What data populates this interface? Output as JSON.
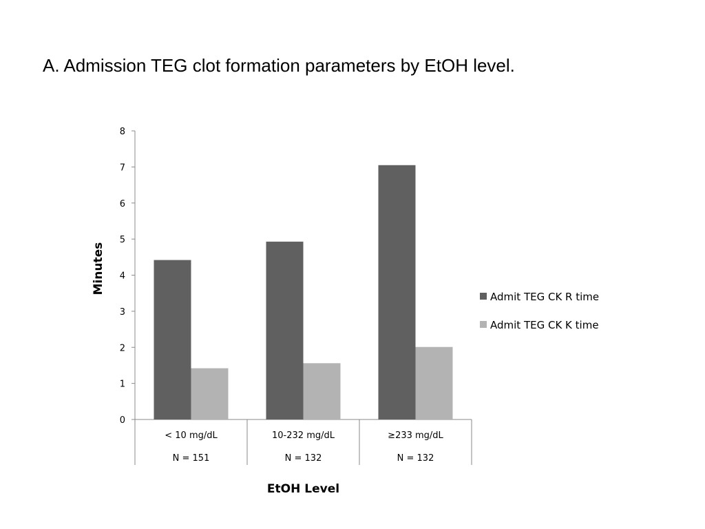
{
  "slide": {
    "title": "A. Admission TEG clot formation parameters by EtOH level."
  },
  "chart_data": {
    "type": "bar",
    "title": "",
    "xlabel": "EtOH Level",
    "ylabel": "Minutes",
    "ylim": [
      0,
      8
    ],
    "yticks": [
      0,
      1,
      2,
      3,
      4,
      5,
      6,
      7,
      8
    ],
    "categories": [
      "< 10 mg/dL",
      "10-232 mg/dL",
      "≥233 mg/dL"
    ],
    "category_counts": [
      "N = 151",
      "N = 132",
      "N = 132"
    ],
    "series": [
      {
        "name": "Admit TEG CK R time",
        "values": [
          4.42,
          4.93,
          7.05
        ],
        "color": "#606060"
      },
      {
        "name": "Admit TEG CK K time",
        "values": [
          1.42,
          1.56,
          2.01
        ],
        "color": "#b3b3b3"
      }
    ],
    "grid": false,
    "legend_position": "right"
  }
}
